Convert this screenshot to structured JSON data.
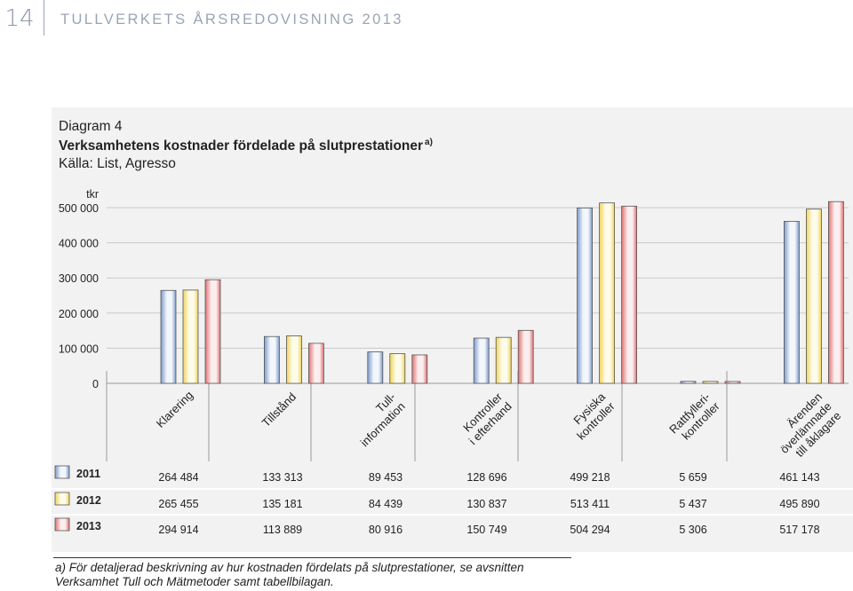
{
  "header": {
    "page_number": "14",
    "doc_title": "TULLVERKETS ÅRSREDOVISNING 2013"
  },
  "caption": {
    "diagram_number": "Diagram 4",
    "title": "Verksamhetens kostnader fördelade på slutprestationer",
    "title_marker": "a)",
    "source": "Källa: List, Agresso"
  },
  "chart_data": {
    "type": "bar",
    "unit_label": "tkr",
    "ylim": [
      0,
      500000
    ],
    "yticks": [
      0,
      100000,
      200000,
      300000,
      400000,
      500000
    ],
    "ytick_labels": [
      "0",
      "100 000",
      "200 000",
      "300 000",
      "400 000",
      "500 000"
    ],
    "grid": true,
    "legend_placement": "table-left",
    "categories": [
      [
        "Klarering"
      ],
      [
        "Tillstånd"
      ],
      [
        "Tull-",
        "information"
      ],
      [
        "Kontroller",
        "i efterhand"
      ],
      [
        "Fysiska",
        "kontroller"
      ],
      [
        "Rattfylleri-",
        "kontroller"
      ],
      [
        "Ärenden",
        "överlämnade",
        "till åklagare"
      ]
    ],
    "series": [
      {
        "name": "2011",
        "values": [
          264484,
          133313,
          89453,
          128696,
          499218,
          5659,
          461143
        ],
        "labels": [
          "264 484",
          "133 313",
          "89 453",
          "128 696",
          "499 218",
          "5 659",
          "461 143"
        ]
      },
      {
        "name": "2012",
        "values": [
          265455,
          135181,
          84439,
          130837,
          513411,
          5437,
          495890
        ],
        "labels": [
          "265 455",
          "135 181",
          "84 439",
          "130 837",
          "513 411",
          "5 437",
          "495 890"
        ]
      },
      {
        "name": "2013",
        "values": [
          294914,
          113889,
          80916,
          150749,
          504294,
          5306,
          517178
        ],
        "labels": [
          "294 914",
          "113 889",
          "80 916",
          "150 749",
          "504 294",
          "5 306",
          "517 178"
        ]
      }
    ],
    "series_colors": [
      {
        "light": "#f3f6fb",
        "dark": "#7d9bcc"
      },
      {
        "light": "#fdfbea",
        "dark": "#f0d45a"
      },
      {
        "light": "#fbeeee",
        "dark": "#dd7373"
      }
    ]
  },
  "footnote": {
    "line1": "a) För detaljerad beskrivning av hur kostnaden fördelats på slutprestationer, se avsnitten",
    "line2": "Verksamhet Tull och Mätmetoder samt tabellbilagan."
  }
}
